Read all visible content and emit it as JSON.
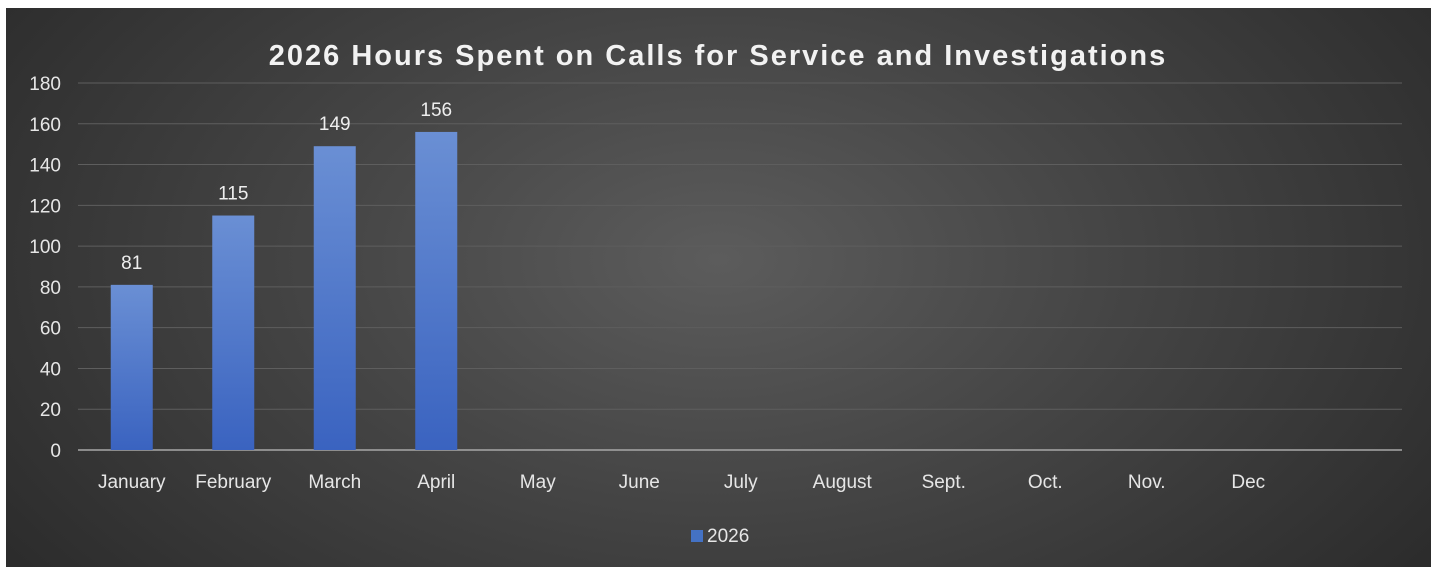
{
  "chart_data": {
    "type": "bar",
    "title": "2026 Hours Spent on Calls for Service and Investigations",
    "xlabel": "",
    "ylabel": "",
    "categories": [
      "January",
      "February",
      "March",
      "April",
      "May",
      "June",
      "July",
      "August",
      "Sept.",
      "Oct.",
      "Nov.",
      "Dec"
    ],
    "series": [
      {
        "name": "2026",
        "values": [
          81,
          115,
          149,
          156,
          null,
          null,
          null,
          null,
          null,
          null,
          null,
          null
        ],
        "color": "#4472c4"
      }
    ],
    "data_labels": [
      "81",
      "115",
      "149",
      "156"
    ],
    "ylim": [
      0,
      180
    ],
    "yticks": [
      0,
      20,
      40,
      60,
      80,
      100,
      120,
      140,
      160,
      180
    ],
    "grid": true,
    "legend_position": "bottom"
  }
}
